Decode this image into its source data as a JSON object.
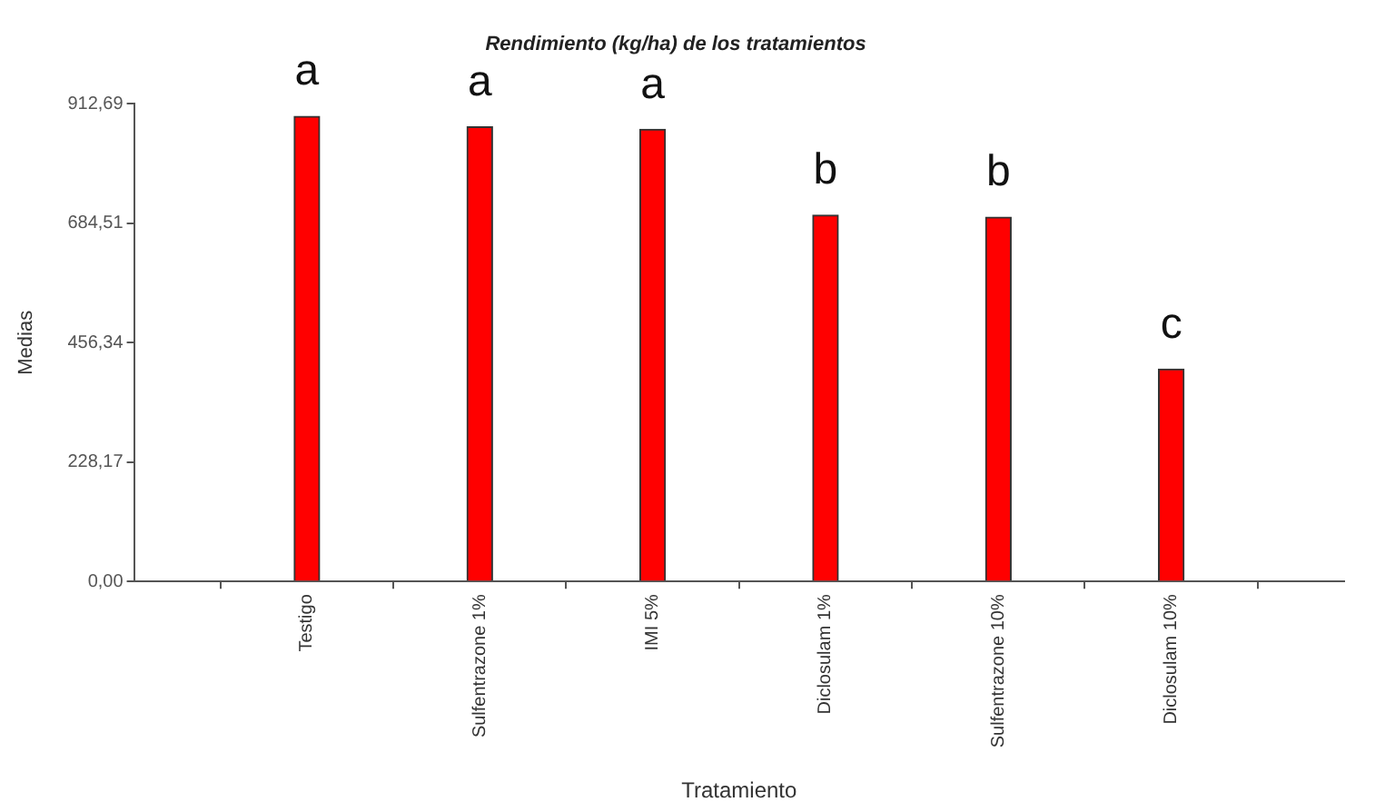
{
  "chart_data": {
    "type": "bar",
    "title": "Rendimiento (kg/ha) de los tratamientos",
    "xlabel": "Tratamiento",
    "ylabel": "Medias",
    "categories": [
      "Testigo",
      "Sulfentrazone 1%",
      "IMI 5%",
      "Diclosulam 1%",
      "Sulfentrazone 10%",
      "Diclosulam 10%"
    ],
    "values": [
      889,
      869,
      864,
      700,
      696,
      406
    ],
    "color": "#ff0000",
    "ylim": [
      0,
      912.69
    ],
    "yticks": [
      {
        "value": 0,
        "label": "0,00"
      },
      {
        "value": 228.17,
        "label": "228,17"
      },
      {
        "value": 456.34,
        "label": "456,34"
      },
      {
        "value": 684.51,
        "label": "684,51"
      },
      {
        "value": 912.69,
        "label": "912,69"
      }
    ],
    "grid": false,
    "legend": false,
    "annotations": [
      {
        "text": "a",
        "x": "Testigo",
        "y": 889
      },
      {
        "text": "a",
        "x": "Sulfentrazone 1%",
        "y": 869
      },
      {
        "text": "a",
        "x": "IMI 5%",
        "y": 864
      },
      {
        "text": "b",
        "x": "Diclosulam 1%",
        "y": 700
      },
      {
        "text": "b",
        "x": "Sulfentrazone 10%",
        "y": 696
      },
      {
        "text": "c",
        "x": "Diclosulam 10%",
        "y": 406
      }
    ]
  }
}
